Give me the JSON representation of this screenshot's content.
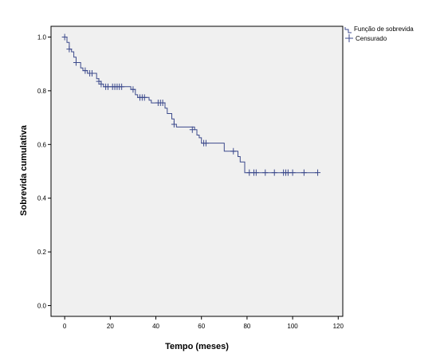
{
  "chart_data": {
    "type": "line",
    "xlabel": "Tempo (meses)",
    "ylabel": "Sobrevida cumulativa",
    "xlim": [
      -6,
      122
    ],
    "ylim": [
      -0.04,
      1.04
    ],
    "x_ticks": [
      0,
      20,
      40,
      60,
      80,
      100,
      120
    ],
    "x_tick_labels": [
      "0",
      "20",
      "40",
      "60",
      "80",
      "100",
      "120"
    ],
    "y_ticks": [
      0.0,
      0.2,
      0.4,
      0.6,
      0.8,
      1.0
    ],
    "y_tick_labels": [
      "0.0",
      "0.2",
      "0.4",
      "0.6",
      "0.8",
      "1.0"
    ],
    "grid": false,
    "legend_position": "top-right, outside plot",
    "series": [
      {
        "name": "Função de sobrevida",
        "style": "step",
        "color": "#3c4a8c",
        "steps": [
          [
            0,
            1.0
          ],
          [
            1,
            0.98
          ],
          [
            2,
            0.955
          ],
          [
            3,
            0.945
          ],
          [
            4,
            0.925
          ],
          [
            5,
            0.905
          ],
          [
            7,
            0.885
          ],
          [
            8,
            0.875
          ],
          [
            10,
            0.865
          ],
          [
            14,
            0.845
          ],
          [
            15,
            0.835
          ],
          [
            16,
            0.825
          ],
          [
            17,
            0.815
          ],
          [
            29,
            0.805
          ],
          [
            31,
            0.785
          ],
          [
            32,
            0.775
          ],
          [
            37,
            0.765
          ],
          [
            38,
            0.755
          ],
          [
            44,
            0.735
          ],
          [
            45,
            0.715
          ],
          [
            47,
            0.695
          ],
          [
            48,
            0.675
          ],
          [
            49,
            0.665
          ],
          [
            57,
            0.655
          ],
          [
            58,
            0.635
          ],
          [
            59,
            0.625
          ],
          [
            60,
            0.605
          ],
          [
            70,
            0.575
          ],
          [
            76,
            0.555
          ],
          [
            77,
            0.535
          ],
          [
            79,
            0.495
          ],
          [
            111,
            0.495
          ]
        ]
      },
      {
        "name": "Censurado",
        "style": "markers",
        "marker": "+",
        "color": "#3c4a8c",
        "points": [
          [
            0,
            1.0
          ],
          [
            2,
            0.955
          ],
          [
            5,
            0.905
          ],
          [
            9,
            0.875
          ],
          [
            11,
            0.865
          ],
          [
            12,
            0.865
          ],
          [
            15,
            0.835
          ],
          [
            16,
            0.825
          ],
          [
            18,
            0.815
          ],
          [
            19,
            0.815
          ],
          [
            21,
            0.815
          ],
          [
            22,
            0.815
          ],
          [
            23,
            0.815
          ],
          [
            24,
            0.815
          ],
          [
            25,
            0.815
          ],
          [
            30,
            0.805
          ],
          [
            33,
            0.775
          ],
          [
            34,
            0.775
          ],
          [
            35,
            0.775
          ],
          [
            41,
            0.755
          ],
          [
            42,
            0.755
          ],
          [
            43,
            0.755
          ],
          [
            48,
            0.675
          ],
          [
            56,
            0.655
          ],
          [
            61,
            0.605
          ],
          [
            62,
            0.605
          ],
          [
            74,
            0.575
          ],
          [
            81,
            0.495
          ],
          [
            83,
            0.495
          ],
          [
            84,
            0.495
          ],
          [
            88,
            0.495
          ],
          [
            92,
            0.495
          ],
          [
            96,
            0.495
          ],
          [
            97,
            0.495
          ],
          [
            98,
            0.495
          ],
          [
            100,
            0.495
          ],
          [
            105,
            0.495
          ],
          [
            111,
            0.495
          ]
        ]
      }
    ]
  },
  "colors": {
    "plot_background": "#f0f0f0",
    "series_line": "#3c4a8c",
    "axis": "#000000"
  }
}
